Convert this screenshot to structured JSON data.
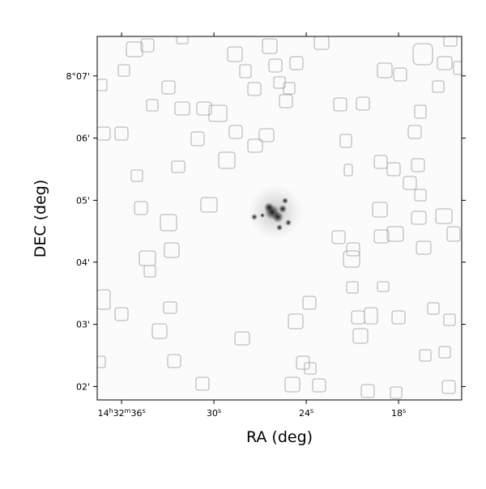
{
  "chart_data": {
    "type": "image",
    "xlabel": "RA (deg)",
    "ylabel": "DEC (deg)",
    "xlim": [
      218.1566,
      218.0579
    ],
    "ylim": [
      8.0297,
      8.1273
    ],
    "xticks": [
      {
        "value": 218.15,
        "label": "14h32m36s"
      },
      {
        "value": 218.125,
        "label": "30s"
      },
      {
        "value": 218.1,
        "label": "24s"
      },
      {
        "value": 218.075,
        "label": "18s"
      }
    ],
    "yticks": [
      {
        "value": 8.0333,
        "label": "02'"
      },
      {
        "value": 8.05,
        "label": "03'"
      },
      {
        "value": 8.0667,
        "label": "04'"
      },
      {
        "value": 8.0833,
        "label": "05'"
      },
      {
        "value": 8.1,
        "label": "06'"
      },
      {
        "value": 8.1167,
        "label": "8°07'"
      }
    ]
  }
}
